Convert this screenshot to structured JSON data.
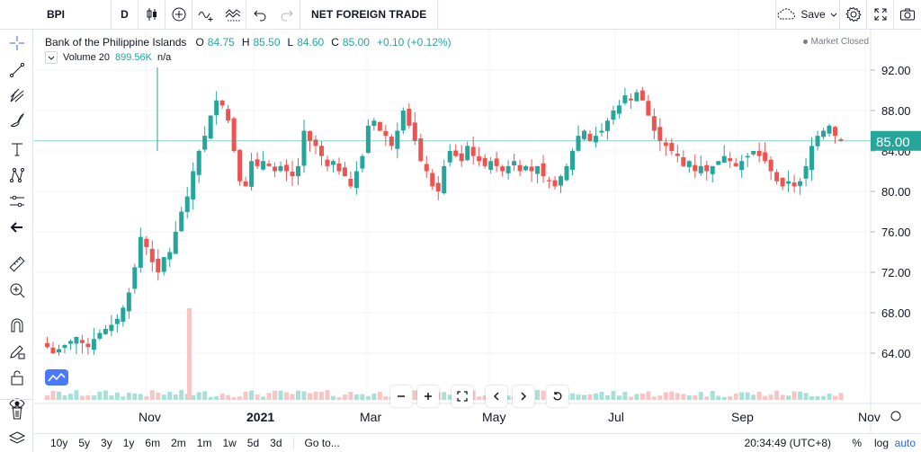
{
  "toolbar": {
    "symbol": "BPI",
    "interval": "D",
    "indicator_title": "NET FOREIGN TRADE",
    "save_label": "Save"
  },
  "legend": {
    "name": "Bank of the Philippine Islands",
    "o_label": "O",
    "o": "84.75",
    "h_label": "H",
    "h": "85.50",
    "l_label": "L",
    "l": "84.60",
    "c_label": "C",
    "c": "85.00",
    "change": "+0.10 (+0.12%)",
    "market_status": "Market Closed"
  },
  "volume": {
    "label": "Volume 20",
    "value": "899.56K",
    "extra": "n/a"
  },
  "bottom": {
    "ranges": [
      "10y",
      "5y",
      "3y",
      "1y",
      "6m",
      "2m",
      "1m",
      "1w",
      "5d",
      "3d"
    ],
    "goto": "Go to...",
    "clock": "20:34:49 (UTC+8)",
    "percent": "%",
    "log": "log",
    "auto": "auto"
  },
  "colors": {
    "up": "#26a69a",
    "down": "#ef5350",
    "accent": "#2962ff",
    "grid": "#f0f3fa"
  },
  "chart_data": {
    "type": "candlestick",
    "x_labels": [
      "Nov",
      "2021",
      "Mar",
      "May",
      "Jul",
      "Sep",
      "Nov"
    ],
    "y_ticks": [
      "92.00",
      "88.00",
      "84.00",
      "80.00",
      "76.00",
      "72.00",
      "68.00",
      "64.00"
    ],
    "last_price": "85.00",
    "ylim": [
      60,
      96
    ],
    "close_path": [
      65.0,
      64.6,
      64.0,
      64.4,
      64.8,
      65.2,
      65.6,
      65.0,
      64.6,
      65.4,
      66.0,
      66.4,
      66.8,
      67.4,
      68.5,
      70.0,
      72.5,
      75.5,
      74.5,
      73.0,
      72.0,
      73.5,
      74.0,
      76.0,
      78.0,
      79.5,
      82.0,
      84.0,
      85.5,
      87.5,
      89.0,
      88.5,
      87.0,
      84.0,
      81.0,
      80.5,
      83.0,
      82.5,
      83.0,
      82.5,
      82.0,
      82.5,
      82.0,
      81.5,
      82.5,
      86.0,
      85.0,
      84.5,
      83.5,
      82.5,
      83.0,
      82.0,
      81.5,
      80.5,
      82.0,
      83.5,
      86.5,
      87.0,
      86.0,
      85.5,
      84.5,
      86.0,
      88.0,
      86.5,
      85.0,
      83.0,
      82.0,
      80.5,
      80.0,
      82.5,
      84.0,
      83.5,
      83.0,
      84.5,
      83.5,
      83.0,
      82.5,
      83.0,
      82.5,
      82.0,
      82.5,
      83.0,
      82.0,
      82.5,
      82.0,
      82.5,
      81.5,
      81.0,
      80.5,
      81.5,
      82.5,
      84.0,
      85.5,
      86.0,
      85.0,
      85.5,
      86.0,
      87.0,
      88.0,
      88.5,
      89.5,
      89.0,
      89.8,
      89.0,
      87.5,
      86.0,
      85.0,
      84.5,
      84.0,
      83.5,
      82.5,
      83.0,
      82.0,
      82.5,
      82.0,
      82.5,
      83.0,
      83.5,
      83.0,
      82.5,
      83.0,
      83.5,
      84.0,
      83.5,
      83.0,
      82.0,
      81.0,
      80.5,
      81.0,
      80.5,
      81.0,
      82.5,
      84.5,
      85.5,
      86.0,
      86.5,
      85.5,
      85.0
    ],
    "volume_spike_label": ""
  }
}
